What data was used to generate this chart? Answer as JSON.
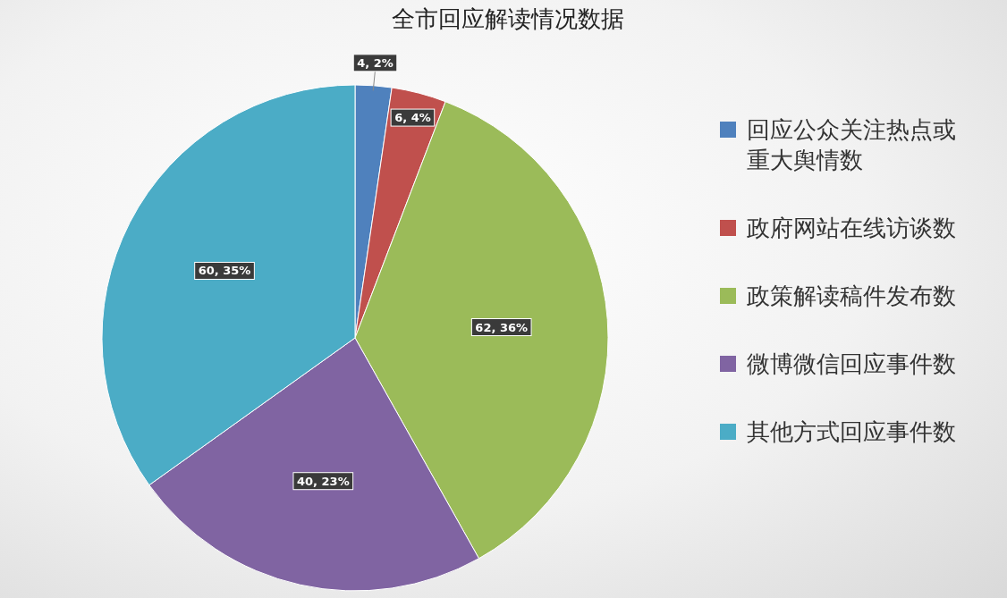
{
  "chart_data": {
    "type": "pie",
    "title": "全市回应解读情况数据",
    "categories": [
      "回应公众关注热点或重大舆情数",
      "政府网站在线访谈数",
      "政策解读稿件发布数",
      "微博微信回应事件数",
      "其他方式回应事件数"
    ],
    "values": [
      4,
      6,
      62,
      40,
      60
    ],
    "colors": [
      "#4f81bd",
      "#c0504d",
      "#9bbb59",
      "#8064a2",
      "#4bacc6"
    ],
    "value_labels": [
      "4, 2%",
      "6, 4%",
      "62, 36%",
      "40, 23%",
      "60, 35%"
    ],
    "legend": "right"
  }
}
